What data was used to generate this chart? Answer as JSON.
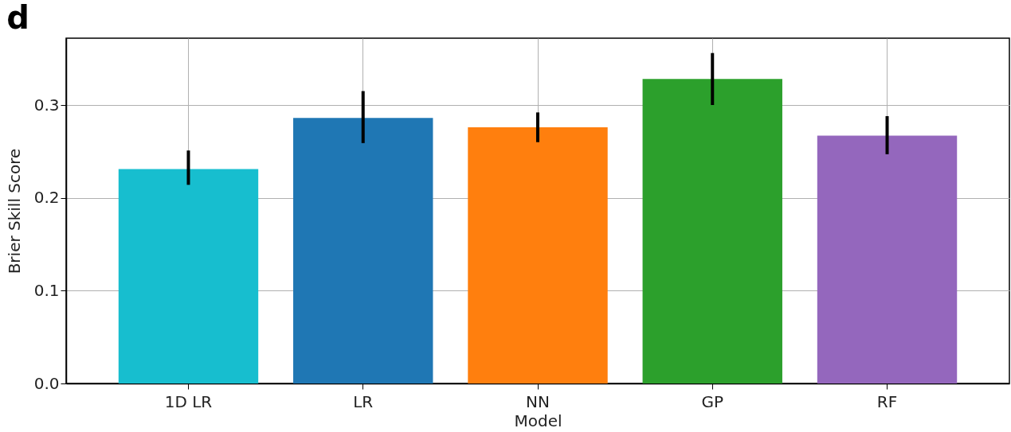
{
  "chart_data": {
    "type": "bar",
    "title": "d",
    "xlabel": "Model",
    "ylabel": "Brier Skill Score",
    "categories": [
      "1D LR",
      "LR",
      "NN",
      "GP",
      "RF"
    ],
    "values": [
      0.231,
      0.286,
      0.276,
      0.328,
      0.267
    ],
    "colors": [
      "#17becf",
      "#1f77b4",
      "#ff7f0e",
      "#2ca02c",
      "#9467bd"
    ],
    "errors": [
      [
        0.214,
        0.251
      ],
      [
        0.259,
        0.315
      ],
      [
        0.26,
        0.292
      ],
      [
        0.3,
        0.356
      ],
      [
        0.247,
        0.288
      ]
    ],
    "ylim": [
      0,
      0.372
    ],
    "yticks": [
      {
        "value": 0,
        "label": "0.0"
      },
      0.1,
      0.2,
      0.3
    ],
    "grid": true
  }
}
